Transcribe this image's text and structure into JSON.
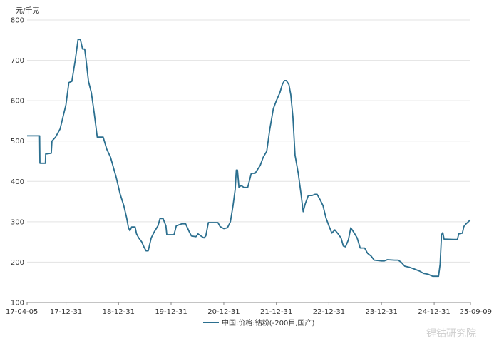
{
  "chart_data": {
    "type": "line",
    "ylabel": "元/千克",
    "ylim": [
      100,
      800
    ],
    "yticks": [
      100,
      200,
      300,
      400,
      500,
      600,
      700,
      800
    ],
    "xticks": [
      "17-04-05",
      "17-12-31",
      "18-12-31",
      "19-12-31",
      "20-12-31",
      "21-12-31",
      "22-12-31",
      "23-12-31",
      "24-12-31",
      "25-09-09"
    ],
    "grid": "horizontal",
    "legend_position": "bottom",
    "series": [
      {
        "name": "中国:价格:钴粉(-200目,国产)",
        "color": "#2b6f8f",
        "points": [
          [
            "17-04-05",
            513
          ],
          [
            "17-07-01",
            513
          ],
          [
            "17-07-03",
            445
          ],
          [
            "17-08-10",
            445
          ],
          [
            "17-08-12",
            468
          ],
          [
            "17-09-20",
            470
          ],
          [
            "17-09-25",
            500
          ],
          [
            "17-10-20",
            510
          ],
          [
            "17-11-20",
            530
          ],
          [
            "17-12-31",
            590
          ],
          [
            "18-01-20",
            645
          ],
          [
            "18-02-10",
            648
          ],
          [
            "18-03-05",
            700
          ],
          [
            "18-03-25",
            752
          ],
          [
            "18-04-10",
            752
          ],
          [
            "18-04-25",
            728
          ],
          [
            "18-05-10",
            728
          ],
          [
            "18-05-20",
            700
          ],
          [
            "18-06-05",
            648
          ],
          [
            "18-06-25",
            620
          ],
          [
            "18-07-15",
            570
          ],
          [
            "18-08-05",
            510
          ],
          [
            "18-09-15",
            510
          ],
          [
            "18-10-10",
            480
          ],
          [
            "18-11-05",
            460
          ],
          [
            "18-12-15",
            410
          ],
          [
            "19-01-10",
            370
          ],
          [
            "19-02-05",
            340
          ],
          [
            "19-02-25",
            310
          ],
          [
            "19-03-10",
            285
          ],
          [
            "19-03-20",
            278
          ],
          [
            "19-04-01",
            287
          ],
          [
            "19-04-25",
            287
          ],
          [
            "19-05-05",
            270
          ],
          [
            "19-05-20",
            260
          ],
          [
            "19-06-10",
            250
          ],
          [
            "19-06-25",
            238
          ],
          [
            "19-07-10",
            228
          ],
          [
            "19-07-25",
            228
          ],
          [
            "19-08-15",
            260
          ],
          [
            "19-09-05",
            275
          ],
          [
            "19-10-01",
            290
          ],
          [
            "19-10-15",
            308
          ],
          [
            "19-11-05",
            308
          ],
          [
            "19-11-25",
            290
          ],
          [
            "19-12-01",
            268
          ],
          [
            "19-12-31",
            268
          ],
          [
            "20-01-20",
            268
          ],
          [
            "20-02-05",
            290
          ],
          [
            "20-03-15",
            295
          ],
          [
            "20-04-10",
            295
          ],
          [
            "20-05-05",
            275
          ],
          [
            "20-05-20",
            265
          ],
          [
            "20-06-20",
            263
          ],
          [
            "20-07-05",
            270
          ],
          [
            "20-07-25",
            265
          ],
          [
            "20-08-15",
            260
          ],
          [
            "20-08-28",
            265
          ],
          [
            "20-09-15",
            298
          ],
          [
            "20-10-25",
            298
          ],
          [
            "20-11-20",
            298
          ],
          [
            "20-12-05",
            288
          ],
          [
            "20-12-31",
            283
          ],
          [
            "21-01-25",
            285
          ],
          [
            "21-02-15",
            300
          ],
          [
            "21-03-05",
            340
          ],
          [
            "21-03-20",
            380
          ],
          [
            "21-03-28",
            428
          ],
          [
            "21-04-05",
            428
          ],
          [
            "21-04-15",
            385
          ],
          [
            "21-04-30",
            390
          ],
          [
            "21-05-20",
            385
          ],
          [
            "21-06-15",
            385
          ],
          [
            "21-07-10",
            420
          ],
          [
            "21-08-05",
            420
          ],
          [
            "21-09-10",
            440
          ],
          [
            "21-10-01",
            460
          ],
          [
            "21-10-25",
            475
          ],
          [
            "21-11-15",
            528
          ],
          [
            "21-12-10",
            580
          ],
          [
            "21-12-31",
            600
          ],
          [
            "22-01-25",
            620
          ],
          [
            "22-02-10",
            640
          ],
          [
            "22-02-25",
            650
          ],
          [
            "22-03-10",
            650
          ],
          [
            "22-03-28",
            640
          ],
          [
            "22-04-10",
            615
          ],
          [
            "22-04-25",
            560
          ],
          [
            "22-05-10",
            465
          ],
          [
            "22-06-01",
            420
          ],
          [
            "22-06-20",
            370
          ],
          [
            "22-07-05",
            325
          ],
          [
            "22-07-20",
            345
          ],
          [
            "22-08-10",
            365
          ],
          [
            "22-09-05",
            365
          ],
          [
            "22-09-25",
            368
          ],
          [
            "22-10-10",
            368
          ],
          [
            "22-10-30",
            355
          ],
          [
            "22-11-20",
            340
          ],
          [
            "22-12-10",
            310
          ],
          [
            "22-12-31",
            290
          ],
          [
            "23-01-20",
            272
          ],
          [
            "23-02-10",
            280
          ],
          [
            "23-03-05",
            270
          ],
          [
            "23-03-25",
            260
          ],
          [
            "23-04-10",
            240
          ],
          [
            "23-04-25",
            238
          ],
          [
            "23-05-15",
            255
          ],
          [
            "23-06-01",
            285
          ],
          [
            "23-06-25",
            272
          ],
          [
            "23-07-15",
            260
          ],
          [
            "23-08-05",
            235
          ],
          [
            "23-09-05",
            235
          ],
          [
            "23-09-25",
            222
          ],
          [
            "23-10-20",
            215
          ],
          [
            "23-11-10",
            205
          ],
          [
            "23-12-31",
            203
          ],
          [
            "24-01-20",
            203
          ],
          [
            "24-02-10",
            206
          ],
          [
            "24-04-01",
            205
          ],
          [
            "24-04-25",
            205
          ],
          [
            "24-05-15",
            200
          ],
          [
            "24-06-10",
            190
          ],
          [
            "24-07-15",
            187
          ],
          [
            "24-08-15",
            183
          ],
          [
            "24-09-20",
            178
          ],
          [
            "24-10-20",
            172
          ],
          [
            "24-11-20",
            170
          ],
          [
            "24-12-20",
            165
          ],
          [
            "25-01-30",
            165
          ],
          [
            "25-02-10",
            195
          ],
          [
            "25-02-20",
            268
          ],
          [
            "25-03-01",
            273
          ],
          [
            "25-03-10",
            257
          ],
          [
            "25-05-15",
            256
          ],
          [
            "25-06-10",
            256
          ],
          [
            "25-06-20",
            270
          ],
          [
            "25-07-15",
            272
          ],
          [
            "25-07-25",
            288
          ],
          [
            "25-08-10",
            295
          ],
          [
            "25-08-25",
            300
          ],
          [
            "25-09-09",
            305
          ]
        ]
      }
    ]
  },
  "watermark": "锂钴研究院"
}
